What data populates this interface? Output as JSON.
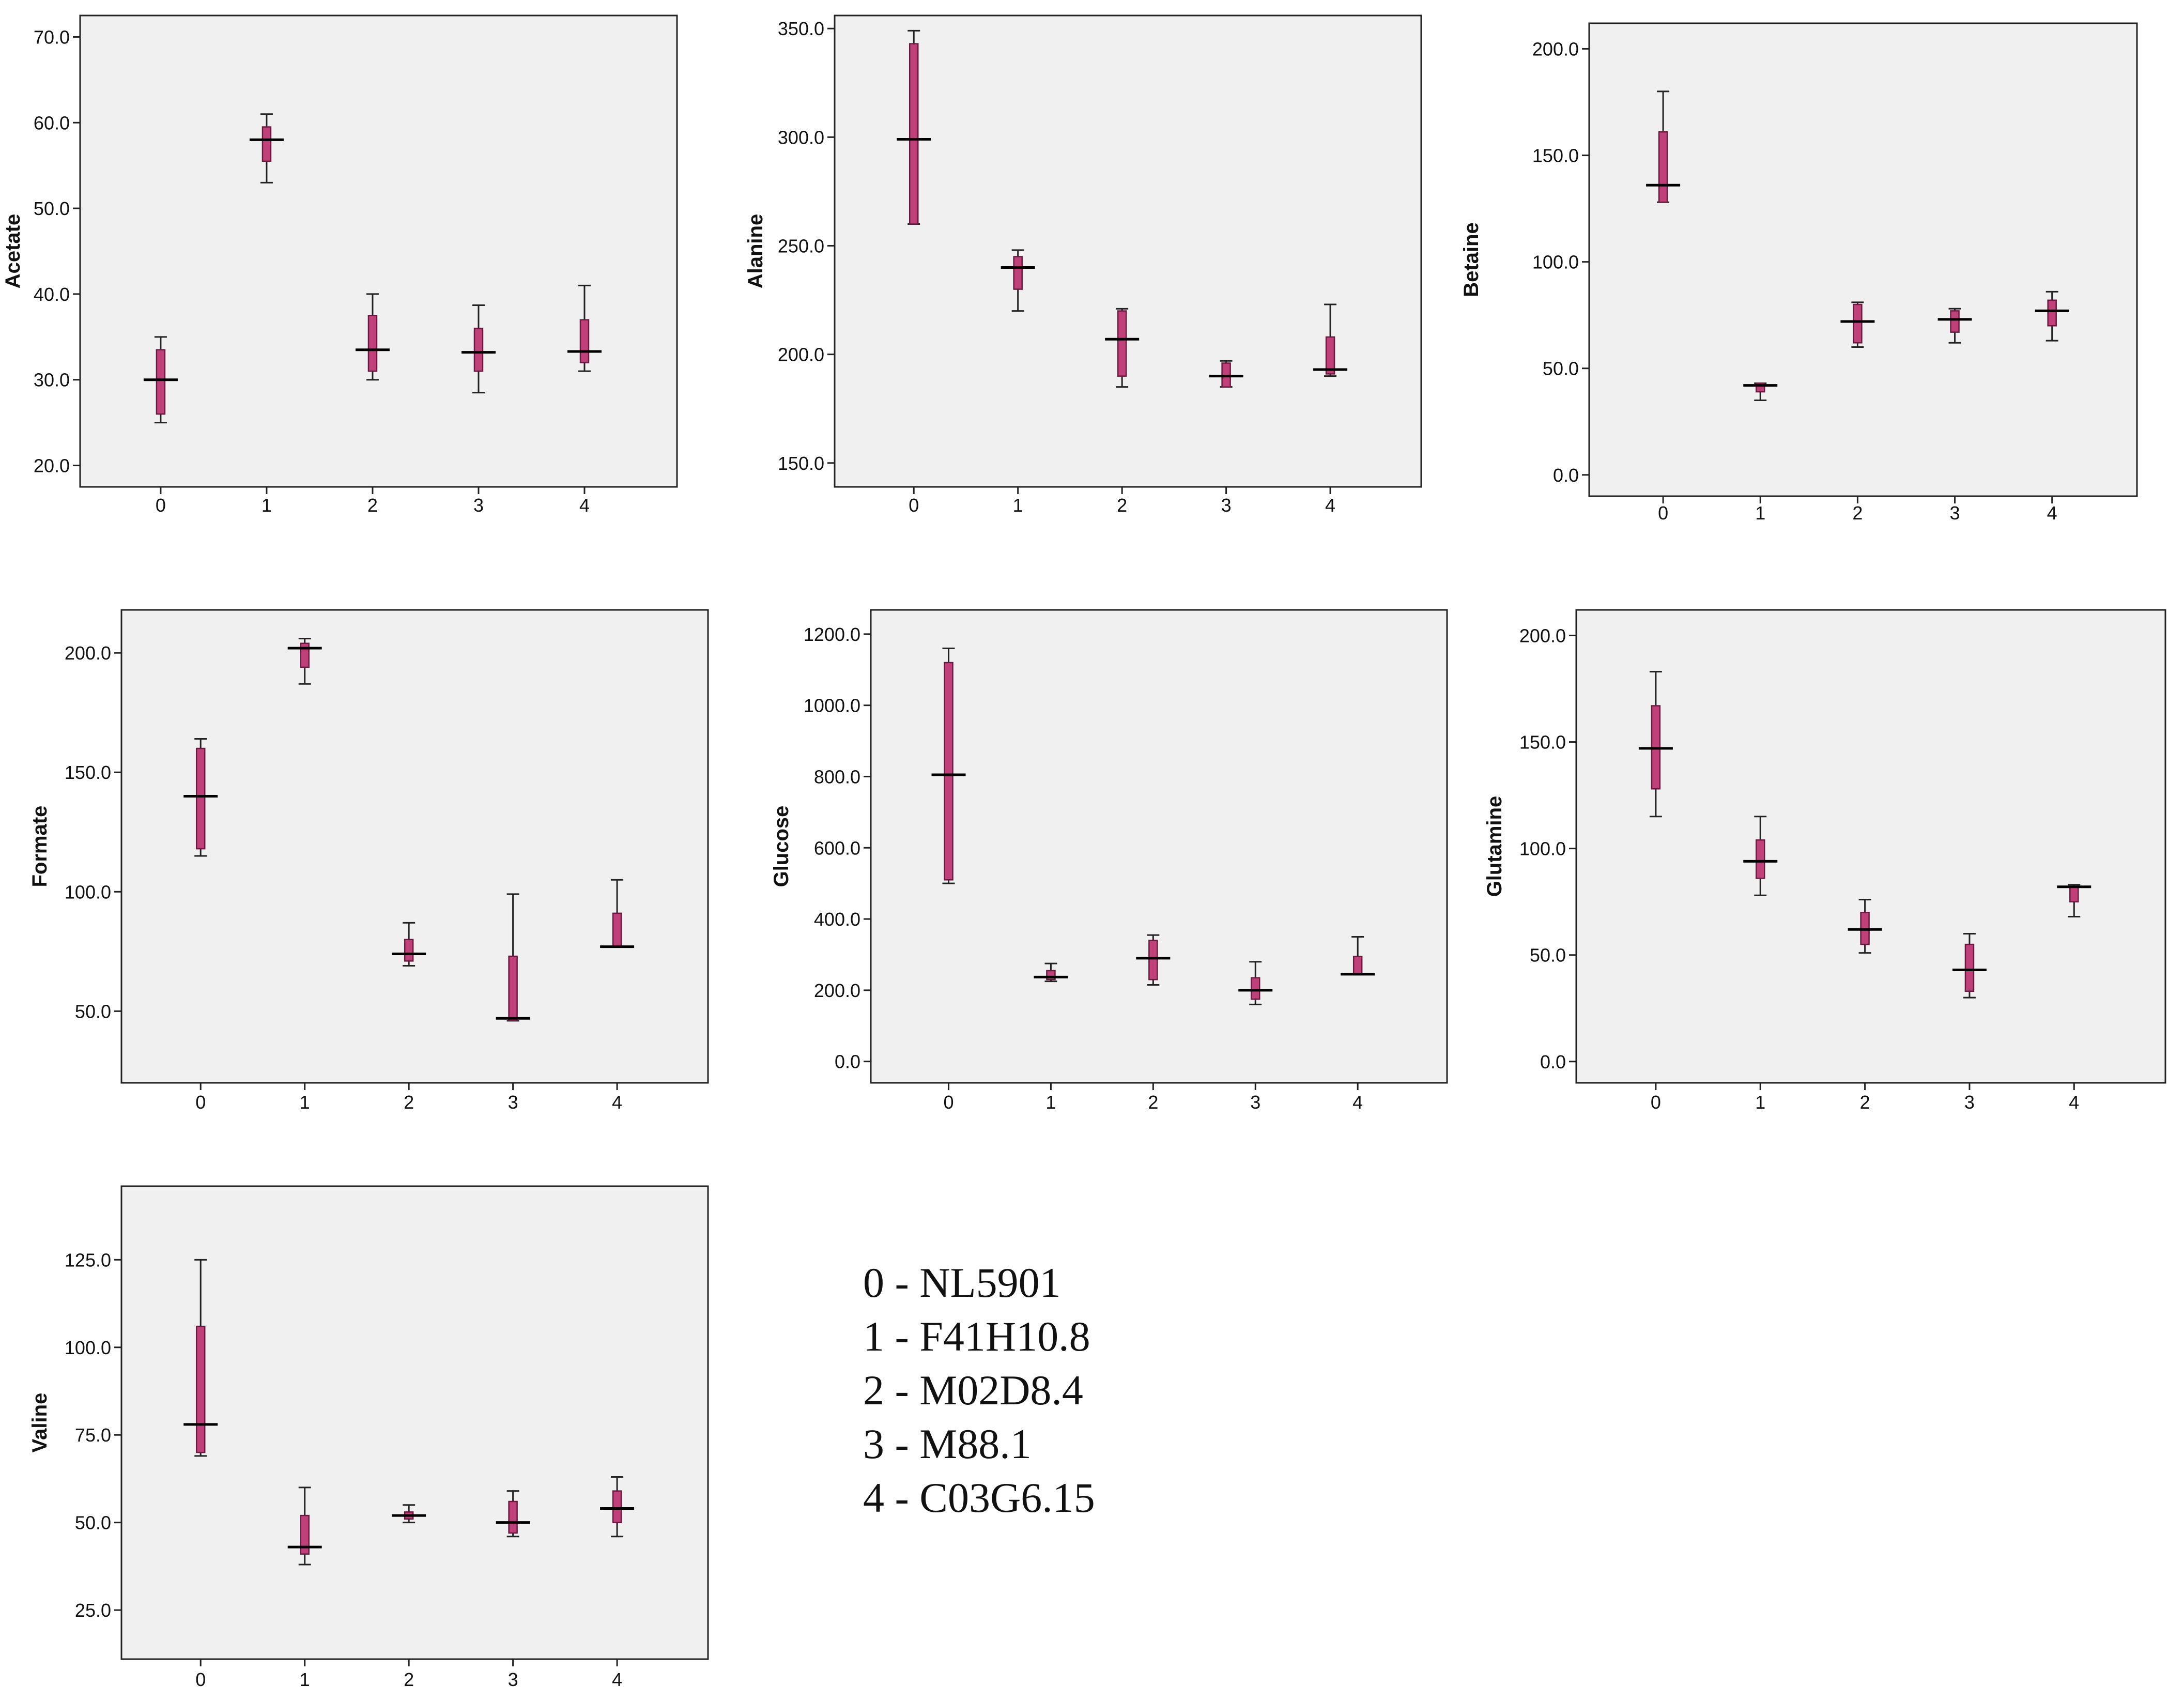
{
  "chart_data": [
    {
      "type": "box",
      "ylabel": "Acetate",
      "categories": [
        "0",
        "1",
        "2",
        "3",
        "4"
      ],
      "ylim": [
        17.5,
        72.5
      ],
      "ticks": [
        20,
        30,
        40,
        50,
        60,
        70
      ],
      "tick_labels": [
        "20.0",
        "30.0",
        "40.0",
        "50.0",
        "60.0",
        "70.0"
      ],
      "boxes": [
        {
          "min": 25,
          "q1": 26,
          "median": 30,
          "q3": 33.5,
          "max": 35
        },
        {
          "min": 53,
          "q1": 55.5,
          "median": 58,
          "q3": 59.5,
          "max": 61
        },
        {
          "min": 30,
          "q1": 31,
          "median": 33.5,
          "q3": 37.5,
          "max": 40
        },
        {
          "min": 28.5,
          "q1": 31,
          "median": 33.2,
          "q3": 36,
          "max": 38.7
        },
        {
          "min": 31,
          "q1": 32,
          "median": 33.3,
          "q3": 37,
          "max": 41
        }
      ]
    },
    {
      "type": "box",
      "ylabel": "Alanine",
      "categories": [
        "0",
        "1",
        "2",
        "3",
        "4"
      ],
      "ylim": [
        139,
        356
      ],
      "ticks": [
        150,
        200,
        250,
        300,
        350
      ],
      "tick_labels": [
        "150.0",
        "200.0",
        "250.0",
        "300.0",
        "350.0"
      ],
      "boxes": [
        {
          "min": 260,
          "q1": 260,
          "median": 299,
          "q3": 343,
          "max": 349
        },
        {
          "min": 220,
          "q1": 230,
          "median": 240,
          "q3": 245,
          "max": 248
        },
        {
          "min": 185,
          "q1": 190,
          "median": 207,
          "q3": 220,
          "max": 221
        },
        {
          "min": 185,
          "q1": 185,
          "median": 190,
          "q3": 196,
          "max": 197
        },
        {
          "min": 190,
          "q1": 191,
          "median": 193,
          "q3": 208,
          "max": 223
        }
      ]
    },
    {
      "type": "box",
      "ylabel": "Betaine",
      "categories": [
        "0",
        "1",
        "2",
        "3",
        "4"
      ],
      "ylim": [
        -10,
        212
      ],
      "ticks": [
        0,
        50,
        100,
        150,
        200
      ],
      "tick_labels": [
        "0.0",
        "50.0",
        "100.0",
        "150.0",
        "200.0"
      ],
      "boxes": [
        {
          "min": 128,
          "q1": 128,
          "median": 136,
          "q3": 161,
          "max": 180
        },
        {
          "min": 35,
          "q1": 39,
          "median": 42,
          "q3": 43,
          "max": 43
        },
        {
          "min": 60,
          "q1": 62,
          "median": 72,
          "q3": 80,
          "max": 81
        },
        {
          "min": 62,
          "q1": 67,
          "median": 73,
          "q3": 77,
          "max": 78
        },
        {
          "min": 63,
          "q1": 70,
          "median": 77,
          "q3": 82,
          "max": 86
        }
      ]
    },
    {
      "type": "box",
      "ylabel": "Formate",
      "categories": [
        "0",
        "1",
        "2",
        "3",
        "4"
      ],
      "ylim": [
        20,
        218
      ],
      "ticks": [
        50,
        100,
        150,
        200
      ],
      "tick_labels": [
        "50.0",
        "100.0",
        "150.0",
        "200.0"
      ],
      "boxes": [
        {
          "min": 115,
          "q1": 118,
          "median": 140,
          "q3": 160,
          "max": 164
        },
        {
          "min": 187,
          "q1": 194,
          "median": 202,
          "q3": 204,
          "max": 206
        },
        {
          "min": 69,
          "q1": 71,
          "median": 74,
          "q3": 80,
          "max": 87
        },
        {
          "min": 46,
          "q1": 46,
          "median": 47,
          "q3": 73,
          "max": 99
        },
        {
          "min": 77,
          "q1": 77,
          "median": 77,
          "q3": 91,
          "max": 105
        }
      ]
    },
    {
      "type": "box",
      "ylabel": "Glucose",
      "categories": [
        "0",
        "1",
        "2",
        "3",
        "4"
      ],
      "ylim": [
        -60,
        1268
      ],
      "ticks": [
        0,
        200,
        400,
        600,
        800,
        1000,
        1200
      ],
      "tick_labels": [
        "0.0",
        "200.0",
        "400.0",
        "600.0",
        "800.0",
        "1000.0",
        "1200.0"
      ],
      "boxes": [
        {
          "min": 500,
          "q1": 510,
          "median": 805,
          "q3": 1120,
          "max": 1160
        },
        {
          "min": 225,
          "q1": 230,
          "median": 237,
          "q3": 255,
          "max": 275
        },
        {
          "min": 215,
          "q1": 230,
          "median": 290,
          "q3": 340,
          "max": 355
        },
        {
          "min": 160,
          "q1": 175,
          "median": 200,
          "q3": 235,
          "max": 280
        },
        {
          "min": 245,
          "q1": 245,
          "median": 245,
          "q3": 295,
          "max": 350
        }
      ]
    },
    {
      "type": "box",
      "ylabel": "Glutamine",
      "categories": [
        "0",
        "1",
        "2",
        "3",
        "4"
      ],
      "ylim": [
        -10,
        212
      ],
      "ticks": [
        0,
        50,
        100,
        150,
        200
      ],
      "tick_labels": [
        "0.0",
        "50.0",
        "100.0",
        "150.0",
        "200.0"
      ],
      "boxes": [
        {
          "min": 115,
          "q1": 128,
          "median": 147,
          "q3": 167,
          "max": 183
        },
        {
          "min": 78,
          "q1": 86,
          "median": 94,
          "q3": 104,
          "max": 115
        },
        {
          "min": 51,
          "q1": 55,
          "median": 62,
          "q3": 70,
          "max": 76
        },
        {
          "min": 30,
          "q1": 33,
          "median": 43,
          "q3": 55,
          "max": 60
        },
        {
          "min": 68,
          "q1": 75,
          "median": 82,
          "q3": 82,
          "max": 83
        }
      ]
    },
    {
      "type": "box",
      "ylabel": "Valine",
      "categories": [
        "0",
        "1",
        "2",
        "3",
        "4"
      ],
      "ylim": [
        11,
        146
      ],
      "ticks": [
        25,
        50,
        75,
        100,
        125
      ],
      "tick_labels": [
        "25.0",
        "50.0",
        "75.0",
        "100.0",
        "125.0"
      ],
      "boxes": [
        {
          "min": 69,
          "q1": 70,
          "median": 78,
          "q3": 106,
          "max": 125
        },
        {
          "min": 38,
          "q1": 41,
          "median": 43,
          "q3": 52,
          "max": 60
        },
        {
          "min": 50,
          "q1": 51,
          "median": 52,
          "q3": 53,
          "max": 55
        },
        {
          "min": 46,
          "q1": 47,
          "median": 50,
          "q3": 56,
          "max": 59
        },
        {
          "min": 46,
          "q1": 50,
          "median": 54,
          "q3": 59,
          "max": 63
        }
      ]
    }
  ],
  "legend": [
    {
      "label": "0 - NL5901"
    },
    {
      "label": "1 - F41H10.8"
    },
    {
      "label": "2 - M02D8.4"
    },
    {
      "label": "3 - M88.1"
    },
    {
      "label": "4 - C03G6.15"
    }
  ],
  "colors": {
    "box_fill": "#c0407a",
    "box_stroke": "#6a1a40",
    "plot_bg": "#f0f0f0",
    "frame": "#222222"
  }
}
